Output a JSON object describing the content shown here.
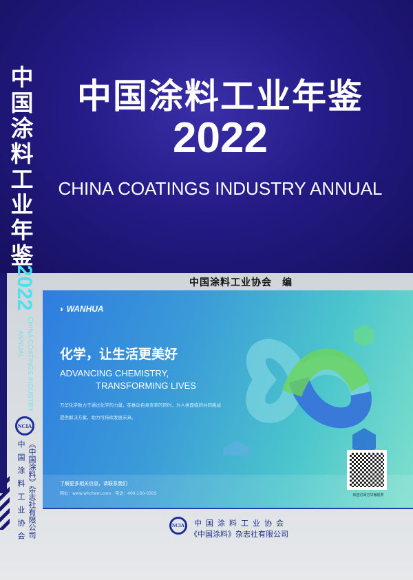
{
  "cover": {
    "title_cn": "中国涂料工业年鉴",
    "year": "2022",
    "title_en": "CHINA COATINGS INDUSTRY ANNUAL",
    "editor": "中国涂料工业协会　编"
  },
  "spine": {
    "title_cn": "中国涂料工业年鉴",
    "year": "2022",
    "title_en_1": "CHINA COATINGS INDUSTRY",
    "title_en_2": "ANNUAL",
    "logo": "NCIA",
    "publisher_1": "《中国涂料》杂志社有限公司",
    "publisher_2": "中国涂料工业协会"
  },
  "ad": {
    "brand": "WANHUA",
    "slogan_cn": "化学，让生活更美好",
    "slogan_en_1": "ADVANCING CHEMISTRY,",
    "slogan_en_2": "TRANSFORMING LIVES",
    "body": "万华化学致力于通过化学的力量，在推动自身变革的同时，为人类面临的共同挑战提供解决方案，助力可持续发展未来。",
    "contact_heading": "了解更多相关信息，请联系我们",
    "contact_line": "网址：www.whchem.com　电话：400-160-0305",
    "qr_caption": "欢迎订阅万华微视界",
    "colors": {
      "blue": "#2f7de0",
      "teal": "#4cc6cc",
      "green": "#5fd46a"
    }
  },
  "publishers": {
    "logo": "NCIA",
    "line_1": "中国涂料工业协会",
    "line_2": "《中国涂料》杂志社有限公司"
  }
}
